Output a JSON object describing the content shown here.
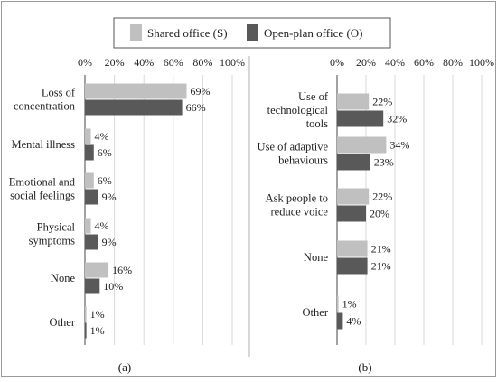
{
  "legend": {
    "items": [
      {
        "label": "Shared office (S)",
        "color": "#c0c0c0"
      },
      {
        "label": "Open-plan office (O)",
        "color": "#595959"
      }
    ]
  },
  "chart_data": [
    {
      "type": "bar",
      "orientation": "horizontal",
      "panel_label": "(a)",
      "xlim": [
        0,
        100
      ],
      "xticks": [
        "0%",
        "20%",
        "40%",
        "60%",
        "80%",
        "100%"
      ],
      "grid": true,
      "legend_position": "top-center",
      "categories": [
        [
          "Loss of",
          "concentration"
        ],
        [
          "Mental illness"
        ],
        [
          "Emotional and",
          "social feelings"
        ],
        [
          "Physical",
          "symptoms"
        ],
        [
          "None"
        ],
        [
          "Other"
        ]
      ],
      "series": [
        {
          "name": "Shared office (S)",
          "color": "#c0c0c0",
          "values": [
            69,
            4,
            6,
            4,
            16,
            1
          ]
        },
        {
          "name": "Open-plan office (O)",
          "color": "#595959",
          "values": [
            66,
            6,
            9,
            9,
            10,
            1
          ]
        }
      ]
    },
    {
      "type": "bar",
      "orientation": "horizontal",
      "panel_label": "(b)",
      "xlim": [
        0,
        100
      ],
      "xticks": [
        "0%",
        "20%",
        "40%",
        "60%",
        "80%",
        "100%"
      ],
      "grid": true,
      "legend_position": "top-center",
      "categories": [
        [
          "Use of",
          "technological",
          "tools"
        ],
        [
          "Use of adaptive",
          "behaviours"
        ],
        [
          "Ask people to",
          "reduce voice"
        ],
        [
          "None"
        ],
        [
          "Other"
        ]
      ],
      "series": [
        {
          "name": "Shared office (S)",
          "color": "#c0c0c0",
          "values": [
            22,
            34,
            22,
            21,
            1
          ]
        },
        {
          "name": "Open-plan office (O)",
          "color": "#595959",
          "values": [
            32,
            23,
            20,
            21,
            4
          ]
        }
      ]
    }
  ]
}
